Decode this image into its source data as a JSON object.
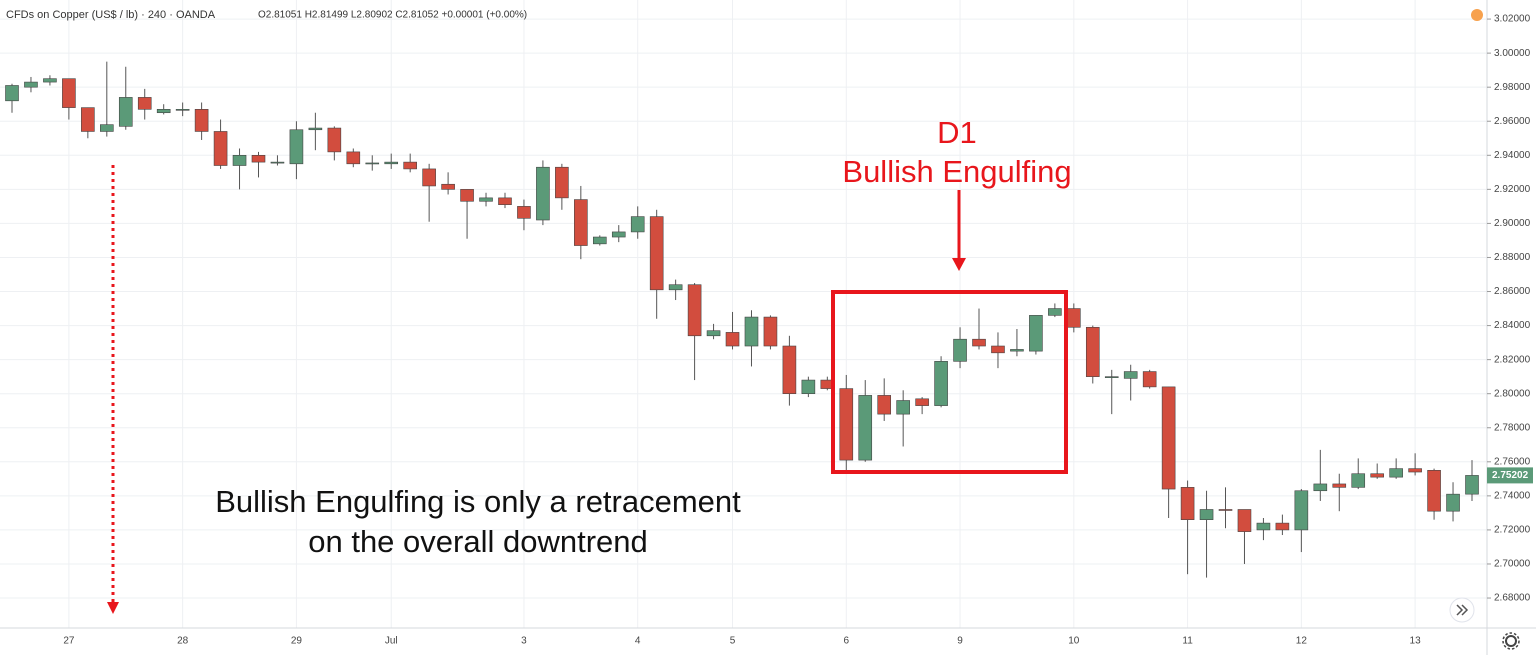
{
  "chart_data": {
    "type": "candlestick",
    "title": "CFDs on Copper (US$ / lb) · 240 · OANDA",
    "ohlc_legend": "O2.81051 H2.81499 L2.80902 C2.81052 +0.00001 (+0.00%)",
    "annotations": [
      "D1",
      "Bullish Engulfing",
      "Bullish Engulfing is only a retracement",
      "on the overall downtrend"
    ],
    "categories": [
      null,
      null,
      null,
      "27",
      null,
      null,
      null,
      null,
      null,
      "28",
      null,
      null,
      null,
      null,
      null,
      "29",
      null,
      null,
      null,
      null,
      "Jul",
      null,
      null,
      null,
      null,
      null,
      null,
      "3",
      null,
      null,
      null,
      null,
      null,
      "4",
      null,
      null,
      null,
      null,
      "5",
      null,
      null,
      null,
      null,
      null,
      "6",
      null,
      null,
      null,
      null,
      null,
      "9",
      null,
      null,
      null,
      null,
      null,
      "10",
      null,
      null,
      null,
      null,
      null,
      "11",
      null,
      null,
      null,
      null,
      null,
      "12",
      null,
      null,
      null,
      null,
      null,
      "13",
      null,
      null,
      null
    ],
    "open": [
      2.972,
      2.98,
      2.983,
      2.985,
      2.968,
      2.954,
      2.957,
      2.974,
      2.965,
      2.9665,
      2.967,
      2.954,
      2.934,
      2.94,
      2.9355,
      2.935,
      2.955,
      2.956,
      2.942,
      2.9355,
      2.935,
      2.936,
      2.932,
      2.923,
      2.92,
      2.913,
      2.915,
      2.91,
      2.902,
      2.933,
      2.914,
      2.888,
      2.892,
      2.895,
      2.904,
      2.861,
      2.864,
      2.834,
      2.836,
      2.828,
      2.845,
      2.828,
      2.8,
      2.808,
      2.803,
      2.761,
      2.799,
      2.788,
      2.797,
      2.793,
      2.819,
      2.832,
      2.828,
      2.825,
      2.825,
      2.846,
      2.85,
      2.839,
      2.81,
      2.809,
      2.813,
      2.804,
      2.745,
      2.726,
      2.732,
      2.732,
      2.72,
      2.724,
      2.72,
      2.743,
      2.747,
      2.745,
      2.753,
      2.751,
      2.756,
      2.755,
      2.731,
      2.741
    ],
    "high": [
      2.982,
      2.986,
      2.987,
      2.985,
      2.968,
      2.995,
      2.992,
      2.979,
      2.97,
      2.971,
      2.971,
      2.961,
      2.944,
      2.942,
      2.94,
      2.96,
      2.965,
      2.957,
      2.944,
      2.94,
      2.941,
      2.941,
      2.935,
      2.93,
      2.92,
      2.918,
      2.918,
      2.914,
      2.937,
      2.935,
      2.922,
      2.893,
      2.899,
      2.91,
      2.908,
      2.867,
      2.865,
      2.841,
      2.848,
      2.849,
      2.846,
      2.834,
      2.81,
      2.81,
      2.811,
      2.808,
      2.809,
      2.802,
      2.798,
      2.822,
      2.839,
      2.85,
      2.836,
      2.838,
      2.846,
      2.853,
      2.853,
      2.84,
      2.814,
      2.817,
      2.814,
      2.804,
      2.749,
      2.743,
      2.745,
      2.732,
      2.727,
      2.729,
      2.744,
      2.767,
      2.753,
      2.762,
      2.759,
      2.762,
      2.765,
      2.756,
      2.748,
      2.761
    ],
    "low": [
      2.965,
      2.977,
      2.981,
      2.961,
      2.95,
      2.951,
      2.955,
      2.961,
      2.964,
      2.963,
      2.949,
      2.932,
      2.92,
      2.927,
      2.934,
      2.926,
      2.943,
      2.937,
      2.933,
      2.931,
      2.932,
      2.93,
      2.901,
      2.917,
      2.891,
      2.91,
      2.909,
      2.896,
      2.899,
      2.908,
      2.879,
      2.887,
      2.889,
      2.891,
      2.844,
      2.855,
      2.808,
      2.832,
      2.826,
      2.816,
      2.826,
      2.793,
      2.798,
      2.802,
      2.755,
      2.76,
      2.784,
      2.769,
      2.788,
      2.792,
      2.815,
      2.826,
      2.815,
      2.822,
      2.823,
      2.845,
      2.836,
      2.806,
      2.788,
      2.796,
      2.803,
      2.727,
      2.694,
      2.692,
      2.721,
      2.7,
      2.714,
      2.717,
      2.707,
      2.737,
      2.731,
      2.744,
      2.75,
      2.75,
      2.752,
      2.726,
      2.725,
      2.737
    ],
    "close": [
      2.981,
      2.983,
      2.985,
      2.968,
      2.954,
      2.958,
      2.974,
      2.967,
      2.967,
      2.967,
      2.954,
      2.934,
      2.94,
      2.936,
      2.936,
      2.955,
      2.956,
      2.942,
      2.935,
      2.9355,
      2.936,
      2.932,
      2.922,
      2.92,
      2.913,
      2.915,
      2.911,
      2.903,
      2.933,
      2.915,
      2.887,
      2.892,
      2.895,
      2.904,
      2.861,
      2.864,
      2.834,
      2.837,
      2.828,
      2.845,
      2.828,
      2.8,
      2.808,
      2.803,
      2.761,
      2.799,
      2.788,
      2.796,
      2.793,
      2.819,
      2.832,
      2.828,
      2.824,
      2.826,
      2.846,
      2.85,
      2.839,
      2.81,
      2.81,
      2.813,
      2.804,
      2.744,
      2.726,
      2.732,
      2.7315,
      2.719,
      2.724,
      2.72,
      2.743,
      2.747,
      2.745,
      2.753,
      2.751,
      2.756,
      2.754,
      2.731,
      2.741,
      2.752
    ],
    "up_color": "#5b9a78",
    "down_color": "#d24d3e",
    "last_price": 2.75202,
    "ylim": [
      2.6624,
      3.0312
    ],
    "yticks": [
      {
        "value": 2.68,
        "label": "2.68000"
      },
      {
        "value": 2.7,
        "label": "2.70000"
      },
      {
        "value": 2.72,
        "label": "2.72000"
      },
      {
        "value": 2.74,
        "label": "2.74000"
      },
      {
        "value": 2.76,
        "label": "2.76000"
      },
      {
        "value": 2.78,
        "label": "2.78000"
      },
      {
        "value": 2.8,
        "label": "2.80000"
      },
      {
        "value": 2.82,
        "label": "2.82000"
      },
      {
        "value": 2.84,
        "label": "2.84000"
      },
      {
        "value": 2.86,
        "label": "2.86000"
      },
      {
        "value": 2.88,
        "label": "2.88000"
      },
      {
        "value": 2.9,
        "label": "2.90000"
      },
      {
        "value": 2.92,
        "label": "2.92000"
      },
      {
        "value": 2.94,
        "label": "2.94000"
      },
      {
        "value": 2.96,
        "label": "2.96000"
      },
      {
        "value": 2.98,
        "label": "2.98000"
      },
      {
        "value": 3.0,
        "label": "3.00000"
      },
      {
        "value": 3.02,
        "label": "3.02000"
      }
    ],
    "grid": true
  }
}
